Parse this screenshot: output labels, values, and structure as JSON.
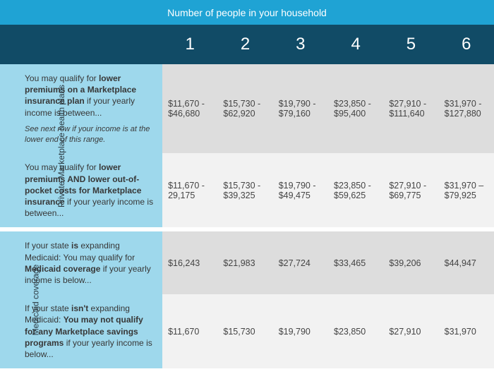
{
  "header": {
    "title": "Number of people in your household"
  },
  "columns": [
    "1",
    "2",
    "3",
    "4",
    "5",
    "6"
  ],
  "sections": [
    {
      "sideLabel": "Private Marketplace health plans",
      "rows": [
        {
          "zebra": "a",
          "desc": "You may qualify for <b>lower premiums on a Marketplace insurance plan</b> if your yearly income is between...",
          "note": "See next row if your income is at the lower end of this range.",
          "values": [
            "$11,670 - $46,680",
            "$15,730 - $62,920",
            "$19,790 - $79,160",
            "$23,850 - $95,400",
            "$27,910 - $111,640",
            "$31,970 - $127,880"
          ]
        },
        {
          "zebra": "b",
          "desc": "You may qualify for <b>lower premiums AND lower out-of-pocket costs for Marketplace insurance</b> if your yearly income is between...",
          "values": [
            "$11,670 - 29,175",
            "$15,730 - $39,325",
            "$19,790 - $49,475",
            "$23,850 - $59,625",
            "$27,910 - $69,775",
            "$31,970 – $79,925"
          ]
        }
      ]
    },
    {
      "sideLabel": "Medicaid coverage",
      "rows": [
        {
          "zebra": "a",
          "desc": "If your state <b>is</b> expanding Medicaid: You may qualify for <b>Medicaid coverage</b> if your yearly income is below...",
          "values": [
            "$16,243",
            "$21,983",
            "$27,724",
            "$33,465",
            "$39,206",
            "$44,947"
          ]
        },
        {
          "zebra": "b",
          "desc": "If your state <b>isn't</b> expanding Medicaid: <b>You may not qualify for any Marketplace savings programs</b> if your yearly income is below...",
          "values": [
            "$11,670",
            "$15,730",
            "$19,790",
            "$23,850",
            "$27,910",
            "$31,970"
          ]
        }
      ]
    }
  ]
}
